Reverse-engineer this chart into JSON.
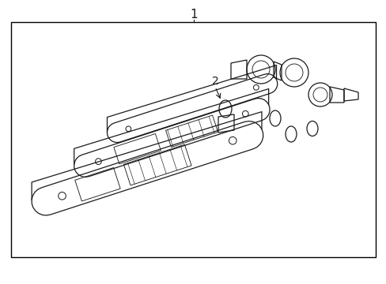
{
  "background_color": "#ffffff",
  "border_color": "#000000",
  "line_color": "#1a1a1a",
  "label1": "1",
  "label2": "2",
  "figsize": [
    4.89,
    3.6
  ],
  "dpi": 100
}
